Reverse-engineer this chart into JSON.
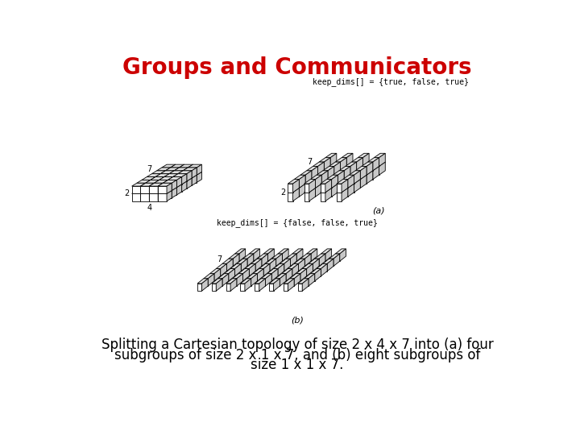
{
  "title": "Groups and Communicators",
  "title_color": "#cc0000",
  "title_fontsize": 20,
  "background_color": "#ffffff",
  "caption_line1": "Splitting a Cartesian topology of size 2 x 4 x 7 into (a) four",
  "caption_line2": "subgroups of size 2 x 1 x 7, and (b) eight subgroups of",
  "caption_line3": "size 1 x 1 x 7.",
  "caption_fontsize": 12,
  "label_a": "(a)",
  "label_b": "(b)",
  "keep_dims_a": "keep_dims[] = {true, false, true}",
  "keep_dims_b": "keep_dims[] = {false, false, true}",
  "annotation_fontsize": 7,
  "dim_label_fontsize": 7
}
